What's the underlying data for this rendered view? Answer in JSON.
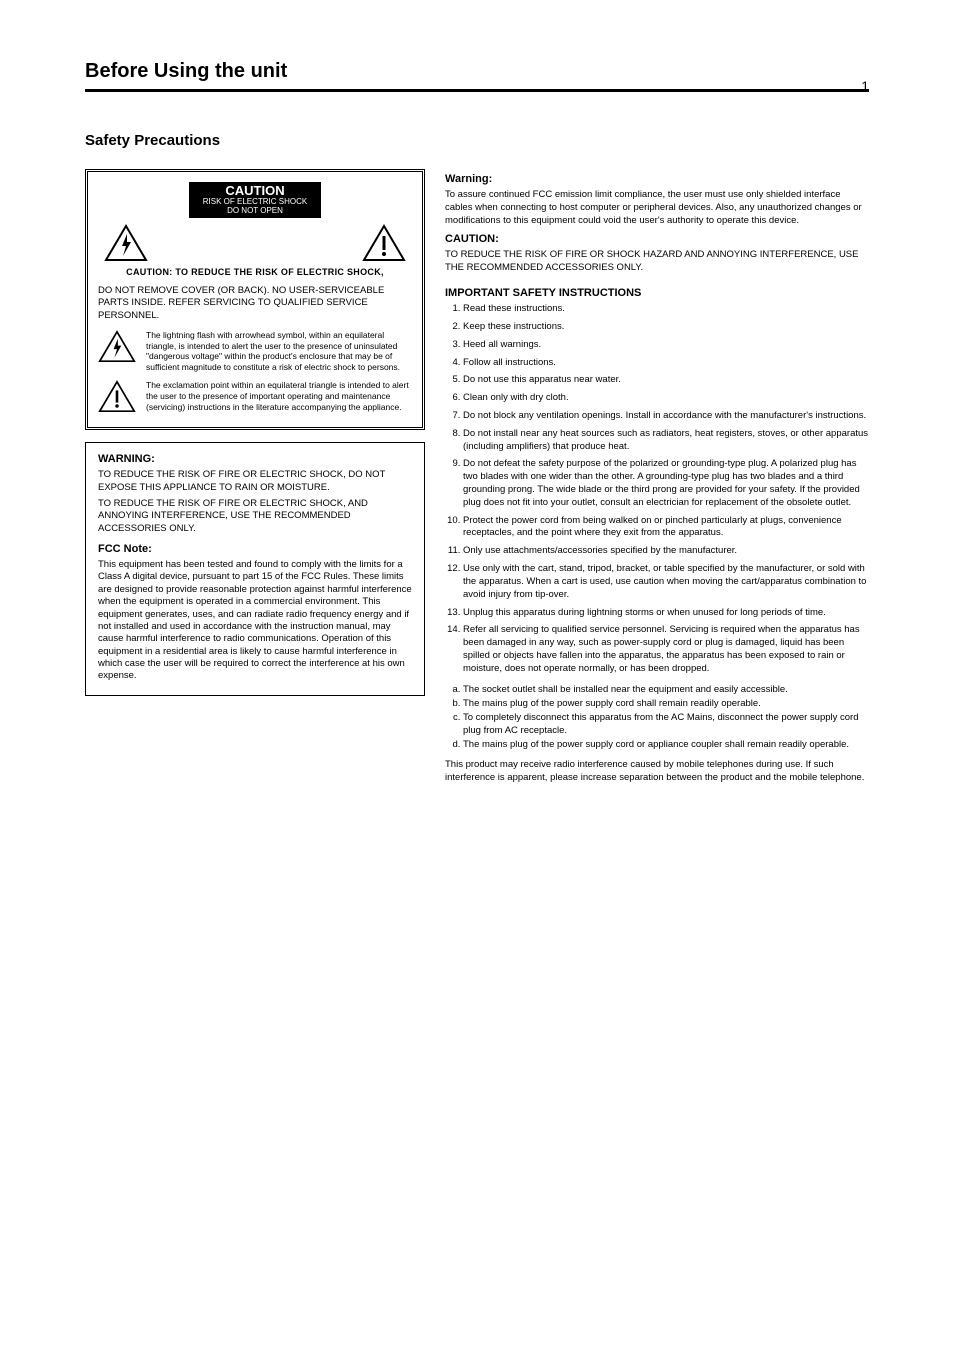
{
  "page_number": "1",
  "section_title": "Before Using the unit",
  "subsection_title": "Safety Precautions",
  "caution_box": {
    "black_label": "CAUTION",
    "black_sub": "RISK OF ELECTRIC SHOCK\nDO NOT OPEN",
    "sub_line": "CAUTION: TO REDUCE THE RISK OF ELECTRIC SHOCK,",
    "para1": "DO NOT REMOVE COVER (OR BACK). NO USER-SERVICEABLE PARTS INSIDE. REFER SERVICING TO QUALIFIED SERVICE PERSONNEL.",
    "icon1_desc": "The lightning flash with arrowhead symbol, within an equilateral triangle, is intended to alert the user to the presence of uninsulated \"dangerous voltage\" within the product's enclosure that may be of sufficient magnitude to constitute a risk of electric shock to persons.",
    "icon2_desc": "The exclamation point within an equilateral triangle is intended to alert the user to the presence of important operating and maintenance (servicing) instructions in the literature accompanying the appliance."
  },
  "warning_box": {
    "heading": "WARNING:",
    "line1": "TO REDUCE THE RISK OF FIRE OR ELECTRIC SHOCK, DO NOT EXPOSE THIS APPLIANCE TO RAIN OR MOISTURE.",
    "line2": "TO REDUCE THE RISK OF FIRE OR ELECTRIC SHOCK, AND ANNOYING INTERFERENCE, USE THE RECOMMENDED ACCESSORIES ONLY.",
    "fcc_heading": "FCC Note:",
    "fcc_text": "This equipment has been tested and found to comply with the limits for a Class A digital device, pursuant to part 15 of the FCC Rules. These limits are designed to provide reasonable protection against harmful interference when the equipment is operated in a commercial environment. This equipment generates, uses, and can radiate radio frequency energy and if not installed and used in accordance with the instruction manual, may cause harmful interference to radio communications. Operation of this equipment in a residential area is likely to cause harmful interference in which case the user will be required to correct the interference at his own expense."
  },
  "right_col": {
    "warning_heading": "Warning:",
    "warning_text": "To assure continued FCC emission limit compliance, the user must use only shielded interface cables when connecting to host computer or peripheral devices. Also, any unauthorized changes or modifications to this equipment could void the user's authority to operate this device.",
    "caution_heading": "CAUTION:",
    "caution_text": "TO REDUCE THE RISK OF FIRE OR SHOCK HAZARD AND ANNOYING INTERFERENCE, USE THE RECOMMENDED ACCESSORIES ONLY.",
    "instructions_heading": "IMPORTANT SAFETY INSTRUCTIONS",
    "items": [
      "Read these instructions.",
      "Keep these instructions.",
      "Heed all warnings.",
      "Follow all instructions.",
      "Do not use this apparatus near water.",
      "Clean only with dry cloth.",
      "Do not block any ventilation openings. Install in accordance with the manufacturer's instructions.",
      "Do not install near any heat sources such as radiators, heat registers, stoves, or other apparatus (including amplifiers) that produce heat.",
      "Do not defeat the safety purpose of the polarized or grounding-type plug. A polarized plug has two blades with one wider than the other. A grounding-type plug has two blades and a third grounding prong. The wide blade or the third prong are provided for your safety. If the provided plug does not fit into your outlet, consult an electrician for replacement of the obsolete outlet.",
      "Protect the power cord from being walked on or pinched particularly at plugs, convenience receptacles, and the point where they exit from the apparatus.",
      "Only use attachments/accessories specified by the manufacturer.",
      "Use only with the cart, stand, tripod, bracket, or table specified by the manufacturer, or sold with the apparatus. When a cart is used, use caution when moving the cart/apparatus combination to avoid injury from tip-over.",
      "Unplug this apparatus during lightning storms or when unused for long periods of time.",
      "Refer all servicing to qualified service personnel. Servicing is required when the apparatus has been damaged in any way, such as power-supply cord or plug is damaged, liquid has been spilled or objects have fallen into the apparatus, the apparatus has been exposed to rain or moisture, does not operate normally, or has been dropped."
    ],
    "sockets": [
      "The socket outlet shall be installed near the equipment and easily accessible.",
      "The mains plug of the power supply cord shall remain readily operable.",
      "To completely disconnect this apparatus from the AC Mains, disconnect the power supply cord plug from AC receptacle.",
      "The mains plug of the power supply cord or appliance coupler shall remain readily operable."
    ],
    "note": "This product may receive radio interference caused by mobile telephones during use. If such interference is apparent, please increase separation between the product and the mobile telephone."
  },
  "colors": {
    "text": "#000000",
    "background": "#ffffff",
    "rule": "#000000"
  }
}
